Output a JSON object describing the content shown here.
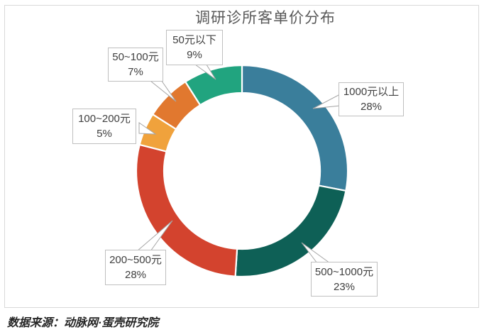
{
  "chart_data": {
    "type": "pie",
    "subtype": "donut",
    "title": "调研诊所客单价分布",
    "unit": "percent",
    "start_angle_deg": 0,
    "direction": "clockwise",
    "hole_ratio": 0.74,
    "legend": "none",
    "label_style": "callout-boxes",
    "categories": [
      "1000元以上",
      "500~1000元",
      "200~500元",
      "100~200元",
      "50~100元",
      "50元以下"
    ],
    "values": [
      28,
      23,
      28,
      5,
      7,
      9
    ],
    "segments": [
      {
        "label": "1000元以上",
        "value": 28,
        "pct": "28%",
        "color": "#3A7E9B"
      },
      {
        "label": "500~1000元",
        "value": 23,
        "pct": "23%",
        "color": "#0E6056"
      },
      {
        "label": "200~500元",
        "value": 28,
        "pct": "28%",
        "color": "#D3432E"
      },
      {
        "label": "100~200元",
        "value": 5,
        "pct": "5%",
        "color": "#F0A23C"
      },
      {
        "label": "50~100元",
        "value": 7,
        "pct": "7%",
        "color": "#E1782F"
      },
      {
        "label": "50元以下",
        "value": 9,
        "pct": "9%",
        "color": "#21A47F"
      }
    ]
  },
  "footer": {
    "source_note": "数据来源：动脉网·蛋壳研究院"
  },
  "style": {
    "frame_border_color": "#D9D9D9",
    "title_color": "#595959",
    "callout_border_color": "#BFBFBF",
    "callout_text_color": "#404040",
    "pointer_stroke_color": "#A6A6A6",
    "segment_gap_color": "#FFFFFF"
  }
}
